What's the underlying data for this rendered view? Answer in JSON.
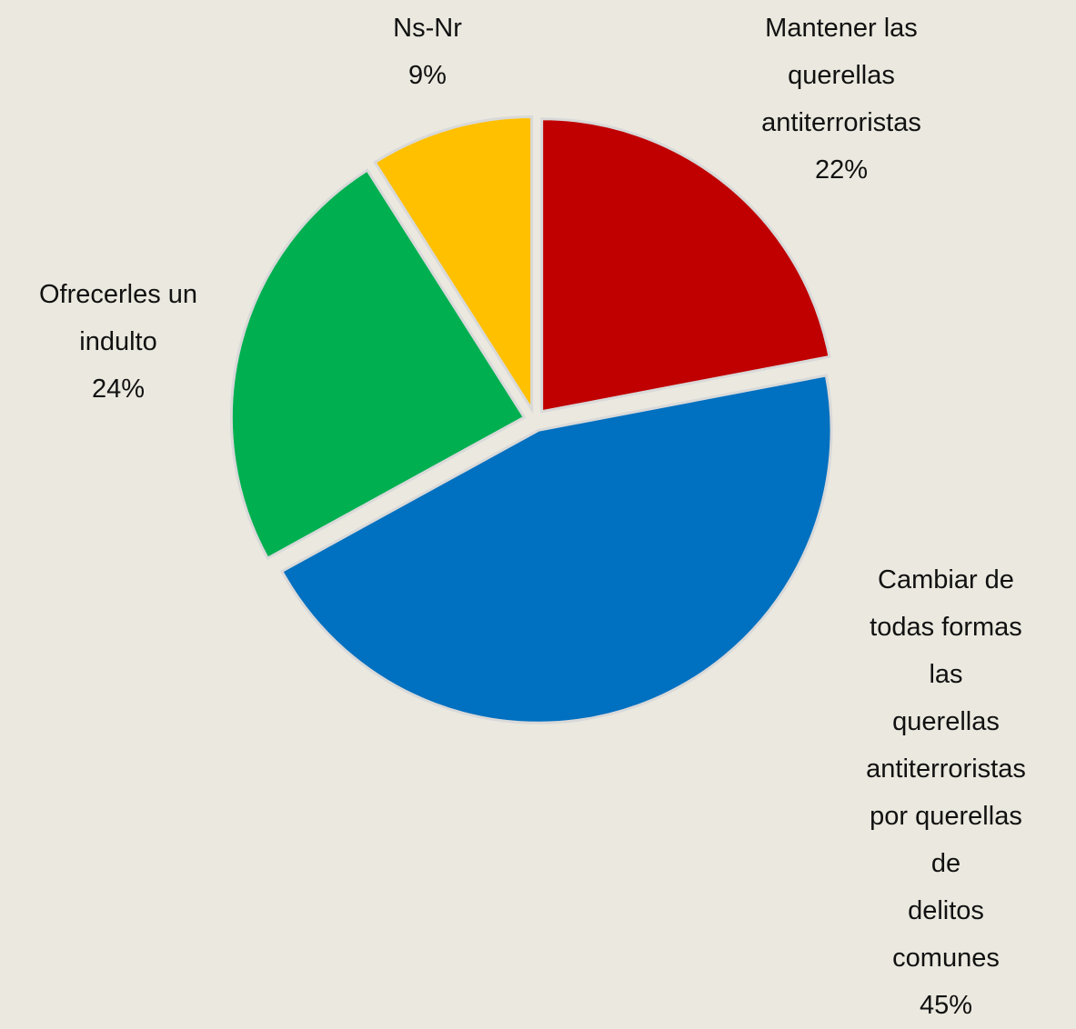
{
  "chart_data": {
    "type": "pie",
    "categories": [
      "Mantener las\nquerellas\nantiterroristas",
      "Cambiar de\ntodas formas las\nquerellas\nantiterroristas\npor querellas de\ndelitos comunes",
      "Ofrecerles un\nindulto",
      "Ns-Nr"
    ],
    "values": [
      22,
      45,
      24,
      9
    ],
    "value_labels": [
      "22%",
      "45%",
      "24%",
      "9%"
    ],
    "colors": [
      "#c00000",
      "#0070c0",
      "#00b050",
      "#ffc000"
    ]
  }
}
